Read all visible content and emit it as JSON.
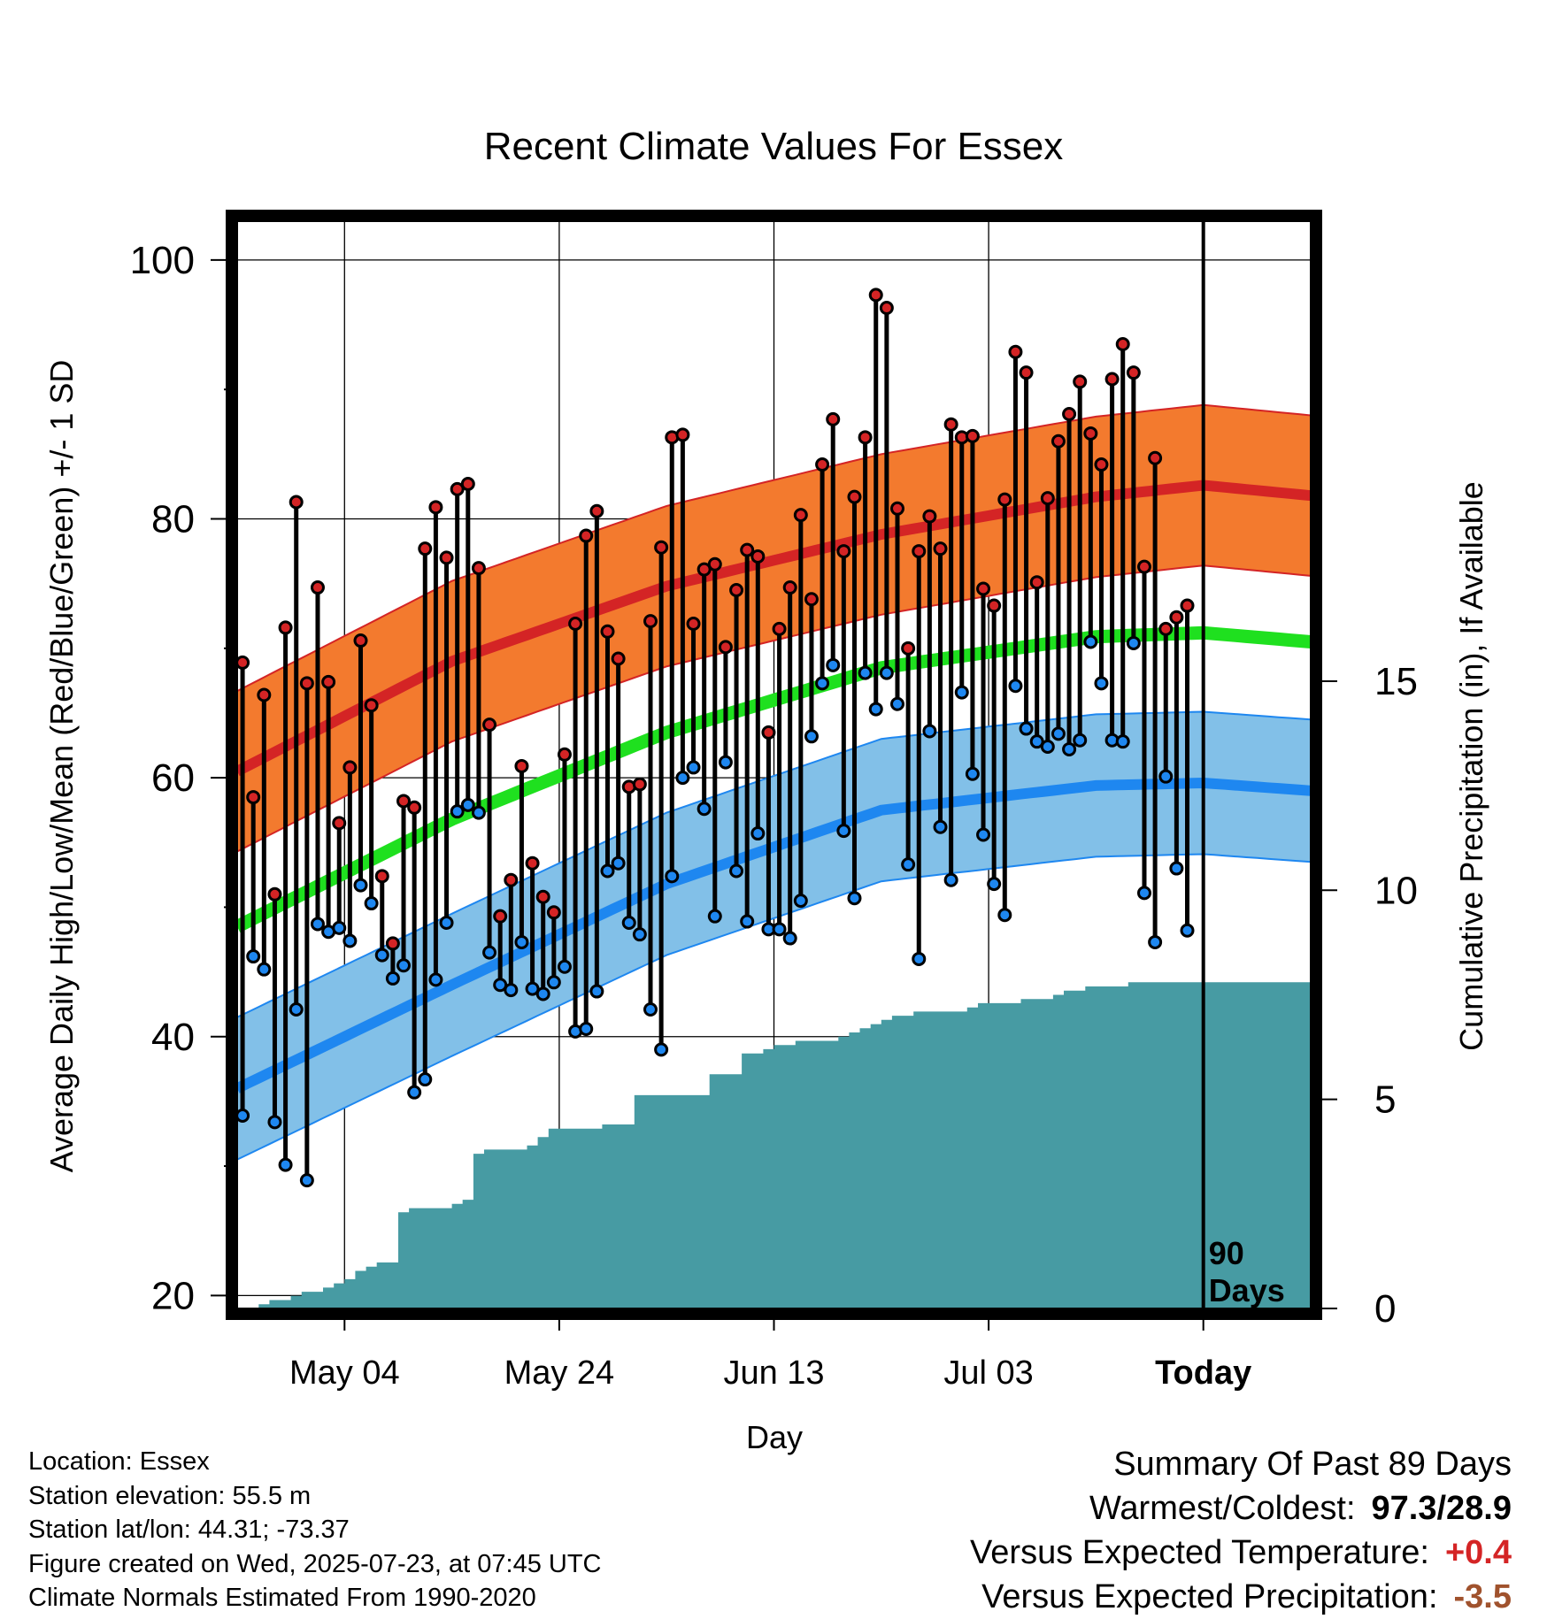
{
  "chart_data": {
    "type": "line",
    "title": "Recent Climate Values For Essex",
    "xlabel": "Day",
    "ylabel": "Average Daily High/Low/Mean (Red/Blue/Green) +/- 1 SD",
    "y2label": "Cumulative Precipitation (in), If Available",
    "ylim": [
      19,
      103
    ],
    "y2lim": [
      0,
      26
    ],
    "grid": true,
    "x_tick_labels": [
      "May 04",
      "May 24",
      "Jun 13",
      "Jul 03",
      "Today"
    ],
    "y_ticks": [
      20,
      40,
      60,
      80,
      100
    ],
    "y2_ticks": [
      0,
      5,
      10,
      15
    ],
    "window_label": "90 Days",
    "day_range": [
      0,
      100
    ],
    "today_day": 90,
    "normal_high": {
      "days": [
        0,
        20,
        40,
        60,
        80,
        90,
        100
      ],
      "values": [
        60.5,
        69.0,
        74.8,
        78.8,
        81.7,
        82.6,
        81.8
      ]
    },
    "normal_mean": {
      "days": [
        0,
        20,
        40,
        60,
        80,
        90,
        100
      ],
      "values": [
        48.5,
        56.8,
        63.5,
        68.5,
        70.9,
        71.2,
        70.5
      ]
    },
    "normal_low": {
      "days": [
        0,
        20,
        40,
        60,
        80,
        90,
        100
      ],
      "values": [
        36.0,
        44.0,
        51.8,
        57.5,
        59.4,
        59.6,
        59.0
      ]
    },
    "sd_high": 6.2,
    "sd_low": 5.5,
    "daily_highs": [
      68.9,
      58.5,
      66.4,
      51.0,
      71.6,
      81.3,
      67.3,
      74.7,
      67.4,
      56.5,
      60.8,
      70.6,
      65.6,
      52.4,
      47.2,
      58.2,
      57.7,
      77.7,
      80.9,
      77.0,
      82.3,
      82.7,
      76.2,
      64.1,
      49.3,
      52.1,
      60.9,
      53.4,
      50.8,
      49.6,
      61.8,
      71.9,
      78.7,
      80.6,
      71.3,
      69.2,
      59.3,
      59.5,
      72.1,
      77.8,
      86.3,
      86.5,
      71.9,
      76.1,
      76.5,
      70.1,
      74.5,
      77.6,
      77.1,
      63.5,
      71.5,
      74.7,
      80.3,
      73.8,
      84.2,
      87.7,
      77.5,
      81.7,
      86.3,
      97.3,
      96.3,
      80.8,
      70.0,
      77.5,
      80.2,
      77.7,
      87.3,
      86.3,
      86.4,
      74.6,
      73.3,
      81.5,
      92.9,
      91.3,
      75.1,
      81.6,
      86.0,
      88.1,
      90.6,
      86.6,
      84.2,
      90.8,
      93.5,
      91.3,
      76.3,
      84.7,
      71.5,
      72.4,
      73.3
    ],
    "daily_lows": [
      33.9,
      46.2,
      45.2,
      33.4,
      30.1,
      42.1,
      28.9,
      48.7,
      48.1,
      48.4,
      47.4,
      51.7,
      50.3,
      46.3,
      44.5,
      45.5,
      35.7,
      36.7,
      44.4,
      48.8,
      57.4,
      57.9,
      57.3,
      46.5,
      44.0,
      43.6,
      47.3,
      43.7,
      43.3,
      44.2,
      45.4,
      40.4,
      40.6,
      43.5,
      52.8,
      53.4,
      48.8,
      47.9,
      42.1,
      39.0,
      52.4,
      60.0,
      60.8,
      57.6,
      49.3,
      61.2,
      52.8,
      48.9,
      55.7,
      48.3,
      48.3,
      47.6,
      50.5,
      63.2,
      67.3,
      68.7,
      55.9,
      50.7,
      68.1,
      65.3,
      68.1,
      65.7,
      53.3,
      46.0,
      63.6,
      56.2,
      52.1,
      66.6,
      60.3,
      55.6,
      51.8,
      49.4,
      67.1,
      63.8,
      62.8,
      62.4,
      63.4,
      62.2,
      62.9,
      70.5,
      67.3,
      62.9,
      62.8,
      70.4,
      51.1,
      47.3,
      60.1,
      53.0,
      48.2
    ],
    "cumulative_precip": {
      "days": [
        0,
        1,
        2,
        3,
        4,
        5,
        6,
        7,
        8,
        9,
        10,
        11,
        12,
        13,
        14,
        15,
        16,
        17,
        18,
        19,
        20,
        21,
        22,
        23,
        24,
        25,
        26,
        27,
        28,
        29,
        30,
        31,
        32,
        33,
        34,
        35,
        36,
        37,
        38,
        39,
        40,
        41,
        42,
        43,
        44,
        45,
        46,
        47,
        48,
        49,
        50,
        51,
        52,
        53,
        54,
        55,
        56,
        57,
        58,
        59,
        60,
        61,
        62,
        63,
        64,
        65,
        66,
        67,
        68,
        69,
        70,
        71,
        72,
        73,
        74,
        75,
        76,
        77,
        78,
        79,
        80,
        81,
        82,
        83,
        84,
        85,
        86,
        87,
        88,
        89,
        90,
        91,
        92,
        93,
        94,
        95,
        96,
        97,
        98,
        99,
        100
      ],
      "values": [
        0.0,
        0.0,
        0.1,
        0.2,
        0.2,
        0.3,
        0.4,
        0.4,
        0.5,
        0.6,
        0.7,
        0.9,
        1.0,
        1.1,
        1.1,
        2.3,
        2.4,
        2.4,
        2.4,
        2.4,
        2.5,
        2.6,
        3.7,
        3.8,
        3.8,
        3.8,
        3.8,
        3.9,
        4.1,
        4.3,
        4.3,
        4.3,
        4.3,
        4.3,
        4.4,
        4.4,
        4.4,
        5.1,
        5.1,
        5.1,
        5.1,
        5.1,
        5.1,
        5.1,
        5.6,
        5.6,
        5.6,
        6.1,
        6.1,
        6.2,
        6.3,
        6.3,
        6.4,
        6.4,
        6.4,
        6.4,
        6.5,
        6.6,
        6.7,
        6.8,
        6.9,
        7.0,
        7.0,
        7.1,
        7.1,
        7.1,
        7.1,
        7.1,
        7.2,
        7.3,
        7.3,
        7.3,
        7.3,
        7.4,
        7.4,
        7.4,
        7.5,
        7.6,
        7.6,
        7.7,
        7.7,
        7.7,
        7.7,
        7.8,
        7.8,
        7.8,
        7.8,
        7.8,
        7.8,
        7.8,
        7.8,
        7.8,
        7.8,
        7.8,
        7.8,
        7.8,
        7.8,
        7.8,
        7.8,
        7.8,
        7.8
      ]
    }
  },
  "info": {
    "location": "Location: Essex",
    "elevation": "Station elevation: 55.5 m",
    "latlon": "Station lat/lon: 44.31; -73.37",
    "created": "Figure created on Wed, 2025-07-23, at 07:45 UTC",
    "normals": "Climate Normals Estimated From 1990-2020"
  },
  "summary": {
    "heading": "Summary Of Past 89 Days",
    "warmest_label": "Warmest/Coldest:",
    "warmest_value": "97.3/28.9",
    "temp_label": "Versus Expected Temperature:",
    "temp_value": "+0.4",
    "precip_label": "Versus Expected Precipitation:",
    "precip_value": "-3.5"
  },
  "colors": {
    "high_band": "#f37a2e",
    "high_line": "#d42425",
    "mean_line": "#1fe01f",
    "low_band": "#82c0e8",
    "low_line": "#1e87f0",
    "precip_fill": "#479ba3",
    "temp_value": "#d42425",
    "precip_value": "#a0522d"
  }
}
